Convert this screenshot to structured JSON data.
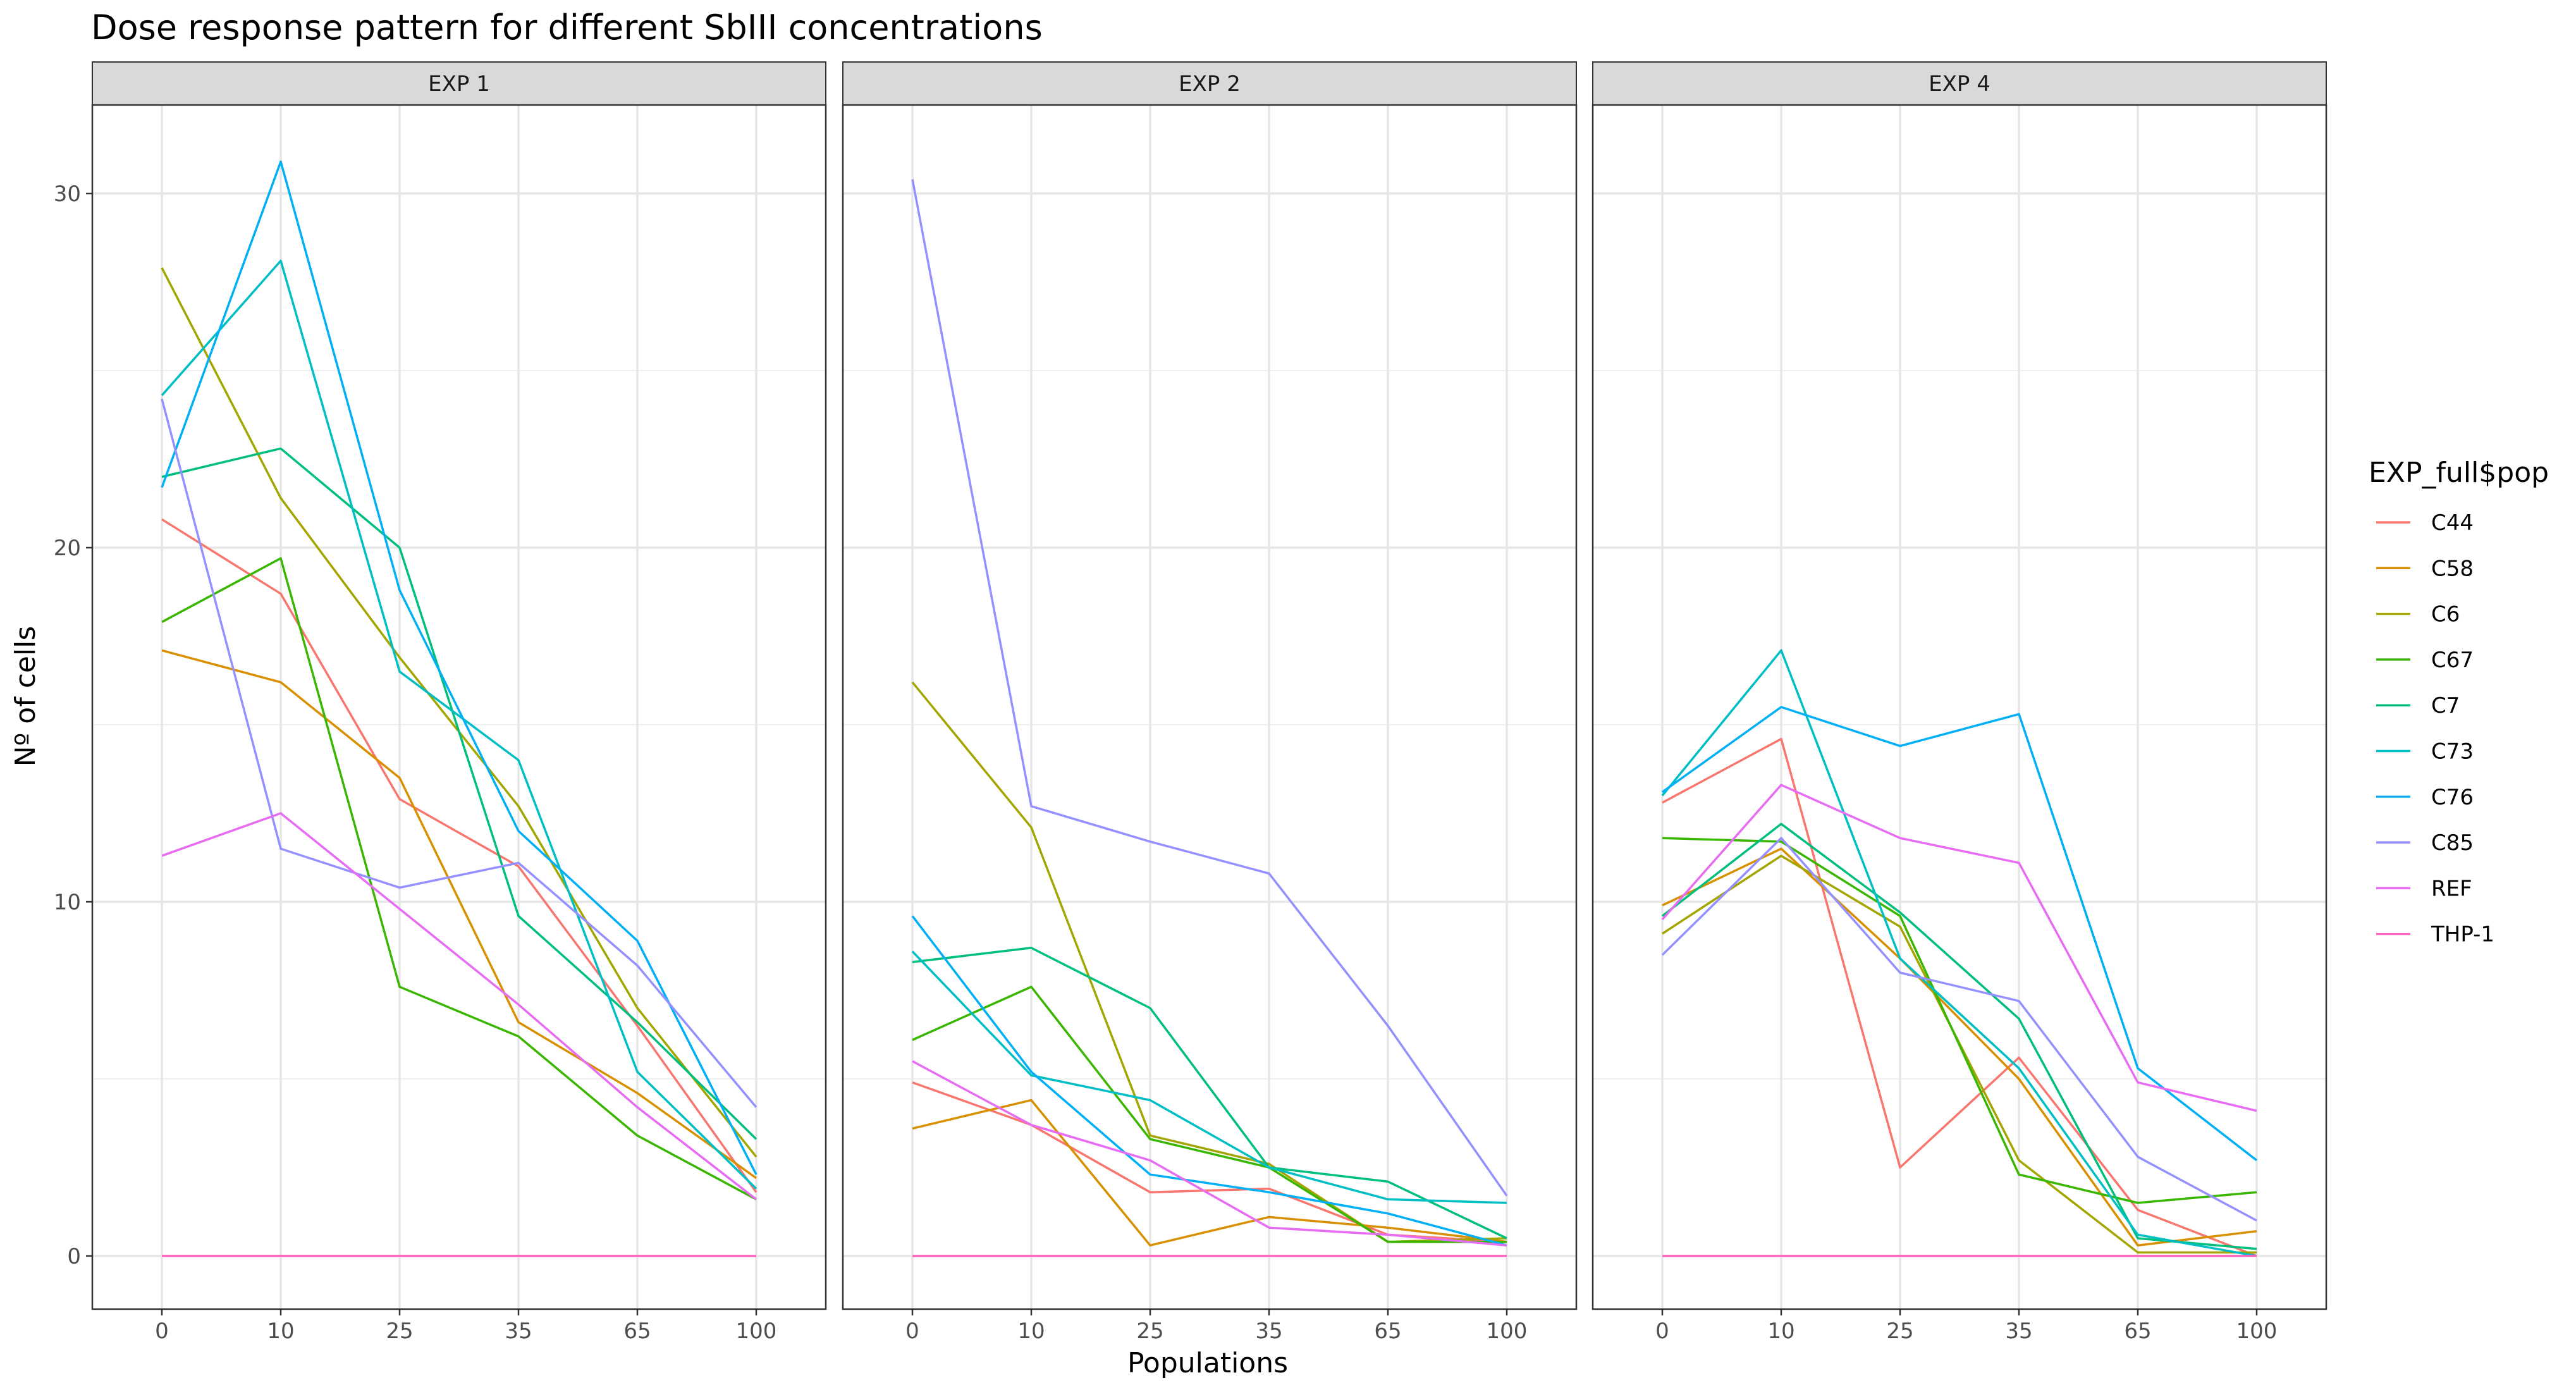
{
  "chart_data": {
    "type": "line",
    "title": "Dose response pattern for different SbIII concentrations",
    "xlabel": "Populations",
    "ylabel": "Nº of cells",
    "categories": [
      "0",
      "10",
      "25",
      "35",
      "65",
      "100"
    ],
    "ylim": [
      -1.5,
      32.5
    ],
    "yticks": [
      0,
      10,
      20,
      30
    ],
    "grid": true,
    "legend": {
      "title": "EXP_full$pop",
      "position": "right"
    },
    "series_colors": {
      "C44": "#F8766D",
      "C58": "#D89000",
      "C6": "#A3A500",
      "C67": "#39B600",
      "C7": "#00BF7D",
      "C73": "#00BFC4",
      "C76": "#00B0F6",
      "C85": "#9590FF",
      "REF": "#E76BF3",
      "THP-1": "#FF62BC"
    },
    "panels": [
      {
        "label": "EXP 1",
        "series": [
          {
            "name": "C44",
            "values": [
              20.8,
              18.7,
              12.9,
              11.0,
              6.5,
              1.8
            ]
          },
          {
            "name": "C58",
            "values": [
              17.1,
              16.2,
              13.5,
              6.6,
              4.6,
              2.2
            ]
          },
          {
            "name": "C6",
            "values": [
              27.9,
              21.4,
              16.9,
              12.7,
              7.0,
              2.8
            ]
          },
          {
            "name": "C67",
            "values": [
              17.9,
              19.7,
              7.6,
              6.2,
              3.4,
              1.6
            ]
          },
          {
            "name": "C7",
            "values": [
              22.0,
              22.8,
              20.0,
              9.6,
              6.6,
              3.3
            ]
          },
          {
            "name": "C73",
            "values": [
              24.3,
              28.1,
              16.5,
              14.0,
              5.2,
              1.9
            ]
          },
          {
            "name": "C76",
            "values": [
              21.7,
              30.9,
              18.8,
              12.0,
              8.9,
              2.3
            ]
          },
          {
            "name": "C85",
            "values": [
              24.2,
              11.5,
              10.4,
              11.1,
              8.2,
              4.2
            ]
          },
          {
            "name": "REF",
            "values": [
              11.3,
              12.5,
              9.8,
              7.1,
              4.2,
              1.6
            ]
          },
          {
            "name": "THP-1",
            "values": [
              0,
              0,
              0,
              0,
              0,
              0
            ]
          }
        ]
      },
      {
        "label": "EXP 2",
        "series": [
          {
            "name": "C44",
            "values": [
              4.9,
              3.7,
              1.8,
              1.9,
              0.6,
              0.4
            ]
          },
          {
            "name": "C58",
            "values": [
              3.6,
              4.4,
              0.3,
              1.1,
              0.8,
              0.4
            ]
          },
          {
            "name": "C6",
            "values": [
              16.2,
              12.1,
              3.4,
              2.6,
              0.4,
              0.5
            ]
          },
          {
            "name": "C67",
            "values": [
              6.1,
              7.6,
              3.3,
              2.5,
              0.4,
              0.4
            ]
          },
          {
            "name": "C7",
            "values": [
              8.3,
              8.7,
              7.0,
              2.5,
              2.1,
              0.5
            ]
          },
          {
            "name": "C73",
            "values": [
              8.6,
              5.1,
              4.4,
              2.5,
              1.6,
              1.5
            ]
          },
          {
            "name": "C76",
            "values": [
              9.6,
              5.2,
              2.3,
              1.8,
              1.2,
              0.3
            ]
          },
          {
            "name": "C85",
            "values": [
              30.4,
              12.7,
              11.7,
              10.8,
              6.5,
              1.7
            ]
          },
          {
            "name": "REF",
            "values": [
              5.5,
              3.7,
              2.7,
              0.8,
              0.6,
              0.3
            ]
          },
          {
            "name": "THP-1",
            "values": [
              0,
              0,
              0,
              0,
              0,
              0
            ]
          }
        ]
      },
      {
        "label": "EXP 4",
        "series": [
          {
            "name": "C44",
            "values": [
              12.8,
              14.6,
              2.5,
              5.6,
              1.3,
              0.0
            ]
          },
          {
            "name": "C58",
            "values": [
              9.9,
              11.5,
              8.4,
              5.0,
              0.3,
              0.7
            ]
          },
          {
            "name": "C6",
            "values": [
              9.1,
              11.3,
              9.3,
              2.7,
              0.1,
              0.1
            ]
          },
          {
            "name": "C67",
            "values": [
              11.8,
              11.7,
              9.6,
              2.3,
              1.5,
              1.8
            ]
          },
          {
            "name": "C7",
            "values": [
              9.6,
              12.2,
              9.7,
              6.7,
              0.5,
              0.2
            ]
          },
          {
            "name": "C73",
            "values": [
              13.0,
              17.1,
              8.4,
              5.3,
              0.6,
              0.0
            ]
          },
          {
            "name": "C76",
            "values": [
              13.1,
              15.5,
              14.4,
              15.3,
              5.3,
              2.7
            ]
          },
          {
            "name": "C85",
            "values": [
              8.5,
              11.8,
              8.0,
              7.2,
              2.8,
              1.0
            ]
          },
          {
            "name": "REF",
            "values": [
              9.5,
              13.3,
              11.8,
              11.1,
              4.9,
              4.1
            ]
          },
          {
            "name": "THP-1",
            "values": [
              0,
              0,
              0,
              0,
              0,
              0
            ]
          }
        ]
      }
    ]
  }
}
